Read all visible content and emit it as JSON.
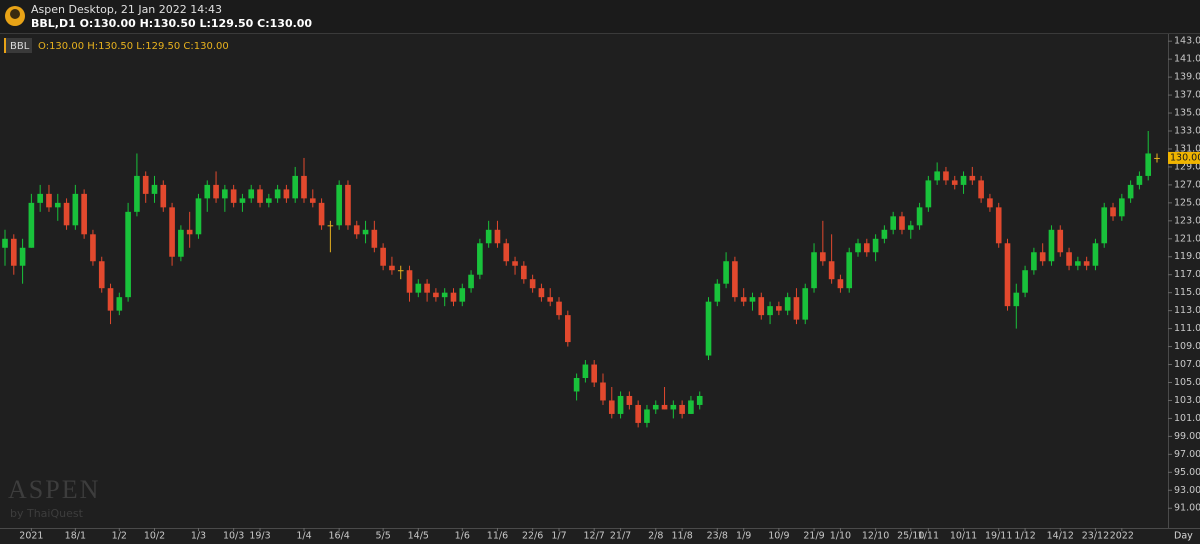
{
  "header": {
    "title": "Aspen Desktop, 21 Jan 2022 14:43",
    "symbol_line": "BBL,D1 O:130.00 H:130.50 L:129.50 C:130.00"
  },
  "watermark": {
    "title": "ASPEN",
    "subtitle": "by ThaiQuest"
  },
  "chart_data": {
    "type": "candlestick",
    "symbol": "BBL",
    "ohlc_label": "O:130.00 H:130.50 L:129.50 C:130.00",
    "timeframe_label": "Day",
    "up_color": "#19c23b",
    "down_color": "#e2492e",
    "flat_color": "#e8b21e",
    "categories": [
      null,
      null,
      null,
      "2021",
      null,
      null,
      null,
      null,
      "18/1",
      null,
      null,
      null,
      null,
      "1/2",
      null,
      null,
      null,
      "10/2",
      null,
      null,
      null,
      null,
      "1/3",
      null,
      null,
      null,
      "10/3",
      null,
      null,
      "19/3",
      null,
      null,
      null,
      null,
      "1/4",
      null,
      null,
      null,
      "16/4",
      null,
      null,
      null,
      null,
      "5/5",
      null,
      null,
      null,
      "14/5",
      null,
      null,
      null,
      null,
      "1/6",
      null,
      null,
      null,
      "11/6",
      null,
      null,
      null,
      "22/6",
      null,
      null,
      "1/7",
      null,
      null,
      null,
      "12/7",
      null,
      null,
      "21/7",
      null,
      null,
      null,
      "2/8",
      null,
      null,
      "11/8",
      null,
      null,
      null,
      "23/8",
      null,
      null,
      "1/9",
      null,
      null,
      null,
      "10/9",
      null,
      null,
      null,
      "21/9",
      null,
      null,
      "1/10",
      null,
      null,
      null,
      "12/10",
      null,
      null,
      null,
      "25/10",
      null,
      "1/11",
      null,
      null,
      null,
      "10/11",
      null,
      null,
      null,
      "19/11",
      null,
      null,
      "1/12",
      null,
      null,
      null,
      "14/12",
      null,
      null,
      null,
      "23/12",
      null,
      null,
      "2022",
      null,
      null,
      null,
      null
    ],
    "open": [
      120,
      121,
      118,
      120,
      125,
      126,
      124.5,
      125,
      122.5,
      126,
      121.5,
      118.5,
      115.5,
      113,
      114.5,
      124,
      128,
      126,
      127,
      124.5,
      119,
      122,
      121.5,
      125.5,
      127,
      125.5,
      126.5,
      125,
      125.5,
      126.5,
      125,
      125.5,
      126.5,
      125.5,
      128,
      125.5,
      125,
      122.5,
      122.5,
      127,
      122.5,
      121.5,
      122,
      120,
      118,
      117.5,
      117.5,
      115,
      116,
      115,
      114.5,
      115,
      114,
      115.5,
      117,
      120.5,
      122,
      120.5,
      118.5,
      118,
      116.5,
      115.5,
      114.5,
      114,
      112.5,
      104,
      105.5,
      107,
      105,
      103,
      101.5,
      103.5,
      102.5,
      100.5,
      102,
      102.5,
      102,
      102.5,
      101.5,
      102.5,
      108,
      114,
      116,
      118.5,
      114.5,
      114,
      114.5,
      112.5,
      113.5,
      113,
      114.5,
      112,
      115.5,
      119.5,
      118.5,
      116.5,
      115.5,
      119.5,
      120.5,
      119.5,
      121,
      122,
      123.5,
      122,
      122.5,
      124.5,
      127.5,
      128.5,
      127.5,
      127,
      128,
      127.5,
      125.5,
      124.5,
      120.5,
      113.5,
      115,
      117.5,
      119.5,
      118.5,
      122,
      119.5,
      118,
      118.5,
      118,
      120.5,
      124.5,
      123.5,
      125.5,
      127,
      128,
      130
    ],
    "high": [
      122,
      121.5,
      121,
      126,
      127,
      127,
      126,
      125.5,
      127,
      126.5,
      122,
      119,
      116,
      115,
      125,
      130.5,
      128.5,
      128,
      127.5,
      125,
      122.5,
      124,
      126,
      127.5,
      128.5,
      127,
      127,
      126,
      127,
      127,
      126,
      127,
      127,
      129,
      130,
      126.5,
      125.5,
      123,
      127.5,
      127.5,
      123,
      123,
      123,
      120.5,
      119,
      118,
      118,
      116.5,
      116.5,
      115.5,
      115.5,
      115.5,
      116,
      117.5,
      121,
      123,
      123,
      121,
      119,
      118.5,
      117,
      116,
      115.5,
      114.5,
      113,
      106,
      107.5,
      107.5,
      106,
      104.5,
      104,
      104,
      103,
      102.5,
      103,
      104.5,
      103,
      103,
      103.5,
      104,
      114.5,
      116.5,
      119.5,
      119,
      115.5,
      115,
      115,
      114,
      114,
      115,
      115.5,
      116,
      120.5,
      123,
      121.5,
      117,
      120,
      121,
      121,
      121.5,
      122.5,
      124,
      124,
      123,
      125,
      128,
      129.5,
      129,
      128,
      128.5,
      129,
      128,
      126,
      125,
      121,
      116,
      118,
      120,
      120.5,
      122.5,
      122.5,
      120,
      119,
      119,
      121,
      125,
      125,
      126,
      127.5,
      128.5,
      133,
      130.5
    ],
    "low": [
      118,
      117,
      116,
      120,
      124,
      124,
      123,
      122,
      122,
      121,
      118,
      115,
      111.5,
      112.5,
      114,
      123.5,
      125,
      125,
      124,
      118,
      118.5,
      120,
      121,
      124,
      125,
      124,
      124.5,
      124,
      125,
      124.5,
      124.5,
      125,
      125,
      125,
      125,
      124.5,
      122,
      119.5,
      122,
      122,
      121,
      120.5,
      119.5,
      117.5,
      117,
      116.5,
      114,
      114.5,
      114,
      114,
      113.5,
      113.5,
      113.5,
      115,
      116.5,
      120,
      120,
      118,
      117,
      116,
      115,
      114,
      113.5,
      112,
      109,
      103,
      105,
      104.5,
      102.5,
      101,
      101,
      102,
      100,
      100,
      101.5,
      102,
      101,
      101,
      101.5,
      102,
      107.5,
      113.5,
      115.5,
      114,
      113.5,
      113,
      112,
      111.5,
      112.5,
      112.5,
      111.5,
      111.5,
      115,
      118,
      116,
      115,
      115,
      119,
      119,
      118.5,
      120.5,
      121.5,
      121.5,
      121,
      122,
      124,
      127,
      127,
      126.5,
      126,
      127,
      125,
      124,
      120,
      113,
      111,
      114.5,
      117,
      118,
      118,
      119,
      117.5,
      117.5,
      117.5,
      117.5,
      120,
      123,
      123,
      125,
      126.5,
      127.5,
      129.5
    ],
    "close": [
      121,
      118,
      120,
      125,
      126,
      124.5,
      125,
      122.5,
      126,
      121.5,
      118.5,
      115.5,
      113,
      114.5,
      124,
      128,
      126,
      127,
      124.5,
      119,
      122,
      121.5,
      125.5,
      127,
      125.5,
      126.5,
      125,
      125.5,
      126.5,
      125,
      125.5,
      126.5,
      125.5,
      128,
      125.5,
      125,
      122.5,
      122.5,
      127,
      122.5,
      121.5,
      122,
      120,
      118,
      117.5,
      117.5,
      115,
      116,
      115,
      114.5,
      115,
      114,
      115.5,
      117,
      120.5,
      122,
      120.5,
      118.5,
      118,
      116.5,
      115.5,
      114.5,
      114,
      112.5,
      109.5,
      105.5,
      107,
      105,
      103,
      101.5,
      103.5,
      102.5,
      100.5,
      102,
      102.5,
      102,
      102.5,
      101.5,
      103,
      103.5,
      114,
      116,
      118.5,
      114.5,
      114,
      114.5,
      112.5,
      113.5,
      113,
      114.5,
      112,
      115.5,
      119.5,
      118.5,
      116.5,
      115.5,
      119.5,
      120.5,
      119.5,
      121,
      122,
      123.5,
      122,
      122.5,
      124.5,
      127.5,
      128.5,
      127.5,
      127,
      128,
      127.5,
      125.5,
      124.5,
      120.5,
      113.5,
      115,
      117.5,
      119.5,
      118.5,
      122,
      119.5,
      118,
      118.5,
      118,
      120.5,
      124.5,
      123.5,
      125.5,
      127,
      128,
      130.5,
      130
    ],
    "last_price": {
      "value": 130,
      "label": "130.00",
      "color": "#f0b400"
    },
    "ylim": [
      88.8,
      143.8
    ],
    "yticks": [
      {
        "value": 91,
        "label": "91.00"
      },
      {
        "value": 93,
        "label": "93.00"
      },
      {
        "value": 95,
        "label": "95.00"
      },
      {
        "value": 97,
        "label": "97.00"
      },
      {
        "value": 99,
        "label": "99.00"
      },
      {
        "value": 101,
        "label": "101.00"
      },
      {
        "value": 103,
        "label": "103.00"
      },
      {
        "value": 105,
        "label": "105.00"
      },
      {
        "value": 107,
        "label": "107.00"
      },
      {
        "value": 109,
        "label": "109.00"
      },
      {
        "value": 111,
        "label": "111.00"
      },
      {
        "value": 113,
        "label": "113.00"
      },
      {
        "value": 115,
        "label": "115.00"
      },
      {
        "value": 117,
        "label": "117.00"
      },
      {
        "value": 119,
        "label": "119.00"
      },
      {
        "value": 121,
        "label": "121.00"
      },
      {
        "value": 123,
        "label": "123.00"
      },
      {
        "value": 125,
        "label": "125.00"
      },
      {
        "value": 127,
        "label": "127.00"
      },
      {
        "value": 129,
        "label": "129.00"
      },
      {
        "value": 131,
        "label": "131.00"
      },
      {
        "value": 133,
        "label": "133.00"
      },
      {
        "value": 135,
        "label": "135.00"
      },
      {
        "value": 137,
        "label": "137.00"
      },
      {
        "value": 139,
        "label": "139.00"
      },
      {
        "value": 141,
        "label": "141.00"
      },
      {
        "value": 143,
        "label": "143.00"
      }
    ],
    "grid": false
  }
}
